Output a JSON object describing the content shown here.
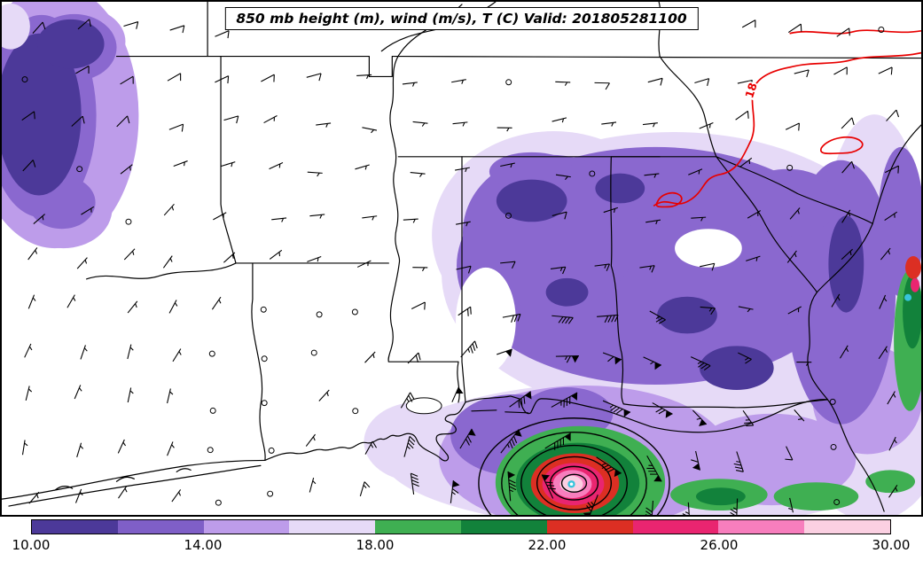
{
  "title": {
    "text": "850 mb height (m), wind (m/s), T (C) Valid: 201805281100"
  },
  "map": {
    "isotherm_label": "18",
    "isotherm_color": "#e80000"
  },
  "colorbar": {
    "min": 10,
    "max": 30,
    "tick_labels": [
      "10.00",
      "14.00",
      "18.00",
      "22.00",
      "26.00",
      "30.00"
    ],
    "segments": [
      {
        "from": 10,
        "to": 12,
        "color": "#4C3999"
      },
      {
        "from": 12,
        "to": 14,
        "color": "#7F5FC7"
      },
      {
        "from": 14,
        "to": 16,
        "color": "#BD9CEA"
      },
      {
        "from": 16,
        "to": 18,
        "color": "#E6DAF7"
      },
      {
        "from": 18,
        "to": 20,
        "color": "#3FAF52"
      },
      {
        "from": 20,
        "to": 22,
        "color": "#12823B"
      },
      {
        "from": 22,
        "to": 24,
        "color": "#DC2F23"
      },
      {
        "from": 24,
        "to": 26,
        "color": "#E92570"
      },
      {
        "from": 26,
        "to": 28,
        "color": "#F77EBD"
      },
      {
        "from": 28,
        "to": 30,
        "color": "#FBD0E2"
      }
    ]
  },
  "chart_data": {
    "type": "heatmap",
    "title": "850 mb height (m), wind (m/s), T (C) Valid: 201805281100",
    "level": "850 mb",
    "valid_time": "201805281100",
    "variables": [
      "geopotential height (m)",
      "wind (m/s)",
      "temperature (C)"
    ],
    "region_shown": "southeastern United States and northern Gulf of Mexico with state borders",
    "temperature_scale_c": {
      "range": [
        10,
        30
      ],
      "tick_values": [
        10,
        14,
        18,
        22,
        26,
        30
      ],
      "segment_bounds": [
        10,
        12,
        14,
        16,
        18,
        20,
        22,
        24,
        26,
        28,
        30
      ],
      "segment_colors": [
        "#4C3999",
        "#7F5FC7",
        "#BD9CEA",
        "#E6DAF7",
        "#3FAF52",
        "#12823B",
        "#DC2F23",
        "#E92570",
        "#F77EBD",
        "#FBD0E2"
      ]
    },
    "contour_labels": [
      {
        "value": "18",
        "color": "#e80000"
      }
    ],
    "overlays": [
      "wind barbs across entire domain, strongest around cyclone center",
      "closed black height contours around cyclone in northeastern Gulf of Mexico",
      "red 18 C isotherm over Georgia/Carolinas",
      "warm core shading (green/red/pink) at cyclone center"
    ],
    "legend_position": "bottom"
  }
}
